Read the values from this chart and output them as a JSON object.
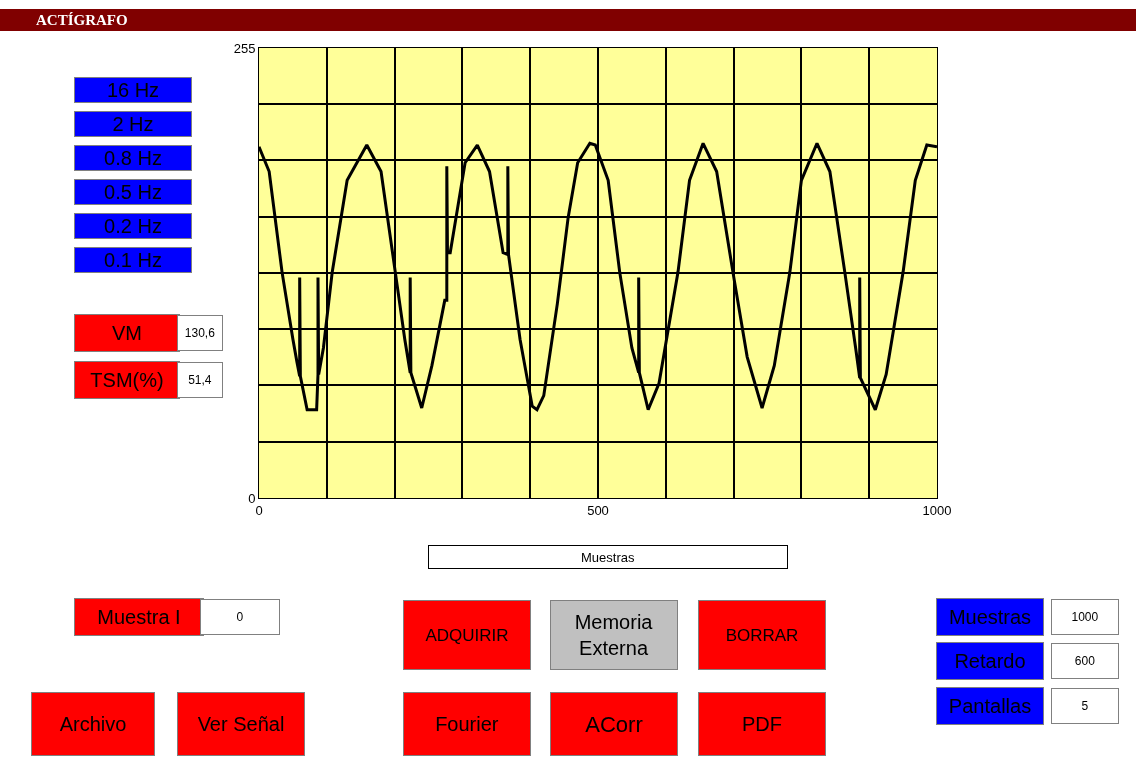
{
  "chart_data": {
    "type": "line",
    "title": "ACTÍGRAFO",
    "xlabel": "Muestras",
    "x": [
      0,
      15,
      34,
      50,
      56,
      60,
      60,
      61,
      71,
      85,
      87,
      87,
      88,
      95,
      108,
      130,
      159,
      180,
      201,
      215,
      223,
      223,
      224,
      240,
      255,
      274,
      277,
      277,
      278,
      282,
      304,
      322,
      340,
      360,
      367,
      367,
      368,
      385,
      403,
      410,
      420,
      440,
      456,
      470,
      488,
      496,
      515,
      532,
      550,
      560,
      560,
      561,
      574,
      590,
      618,
      635,
      655,
      675,
      699,
      720,
      742,
      760,
      783,
      800,
      823,
      842,
      864,
      880,
      886,
      886,
      887,
      909,
      925,
      950,
      968,
      985,
      1000
    ],
    "series": [
      {
        "color": "#000000",
        "values": [
          199,
          185,
          128,
          90,
          77,
          69,
          125,
          69,
          50,
          50,
          70,
          125,
          70,
          85,
          128,
          180,
          200,
          185,
          128,
          90,
          71,
          125,
          71,
          51,
          75,
          112,
          112,
          188,
          139,
          139,
          190,
          200,
          185,
          139,
          138,
          188,
          138,
          90,
          52,
          50,
          58,
          110,
          159,
          190,
          201,
          200,
          180,
          128,
          85,
          71,
          125,
          71,
          50,
          65,
          128,
          180,
          201,
          185,
          128,
          80,
          51,
          75,
          128,
          180,
          201,
          185,
          128,
          85,
          68,
          125,
          68,
          50,
          70,
          128,
          180,
          200,
          199
        ]
      }
    ],
    "xlim": [
      0,
      1000
    ],
    "ylim": [
      0,
      255
    ],
    "xticks": [
      0,
      {
        "value": 100,
        "label": null
      },
      {
        "value": 200,
        "label": null
      },
      {
        "value": 300,
        "label": null
      },
      {
        "value": 400,
        "label": null
      },
      500,
      {
        "value": 600,
        "label": null
      },
      {
        "value": 700,
        "label": null
      },
      {
        "value": 800,
        "label": null
      },
      {
        "value": 900,
        "label": null
      },
      1000
    ],
    "yticks": [
      0,
      {
        "value": 31.9,
        "label": null
      },
      {
        "value": 63.8,
        "label": null
      },
      {
        "value": 95.6,
        "label": null
      },
      {
        "value": 127.5,
        "label": null
      },
      {
        "value": 159.4,
        "label": null
      },
      {
        "value": 191.3,
        "label": null
      },
      {
        "value": 223.1,
        "label": null
      },
      255
    ],
    "grid": true,
    "marker": "none",
    "line_style": "solid",
    "annotations": [
      "16 Hz",
      "2 Hz",
      "0.8 Hz",
      "0.5 Hz",
      "0.2 Hz",
      "0.1 Hz",
      "VM",
      "130,6",
      "TSM(%)",
      "51,4",
      "Muestra I",
      "0",
      "ADQUIRIR",
      "Memoria\nExterna",
      "BORRAR",
      "Fourier",
      "ACorr",
      "PDF",
      "Archivo",
      "Ver Señal",
      "Muestras",
      "1000",
      "Retardo",
      "600",
      "Pantallas",
      "5"
    ]
  }
}
